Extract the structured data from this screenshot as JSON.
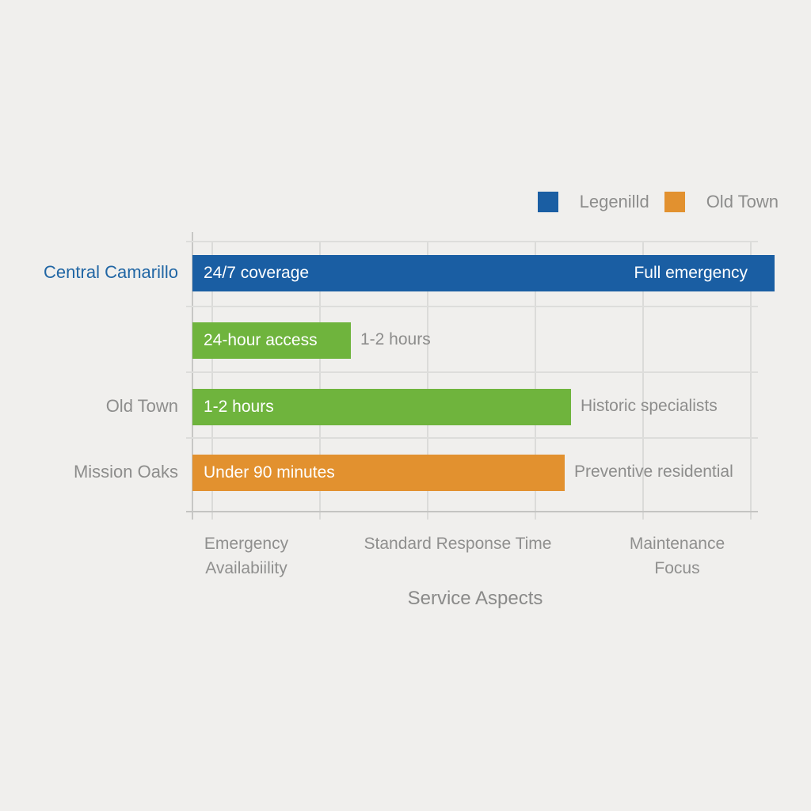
{
  "background_color": "#f0efed",
  "legend": {
    "items": [
      {
        "label": "Legenilld",
        "color": "#1a5ea3"
      },
      {
        "label": "Old Town",
        "color": "#e2912f"
      }
    ]
  },
  "chart_data": {
    "type": "bar",
    "orientation": "horizontal",
    "title": "",
    "xlabel": "Service Aspects",
    "ylabel": "",
    "grid": true,
    "legend_position": "top-right",
    "x_tick_labels": [
      "Emergency\nAvailabiility",
      "Standard Response Time",
      "Maintenance Focus"
    ],
    "colors": {
      "blue": "#1a5ea3",
      "green": "#6fb43d",
      "orange": "#e2912f",
      "category_highlight": "#2166a4",
      "text_gray": "#8d8d8c"
    },
    "rows": [
      {
        "category": "Central Camarillo",
        "category_highlighted": true,
        "bar_label": "24/7 coverage",
        "bar_end_label": "Full emergency",
        "outside_label": "",
        "color": "#1a5ea3",
        "length_frac": 1.029
      },
      {
        "category": "",
        "category_highlighted": false,
        "bar_label": "24-hour access",
        "bar_end_label": "",
        "outside_label": "1-2 hours",
        "color": "#6fb43d",
        "length_frac": 0.28
      },
      {
        "category": "Old Town",
        "category_highlighted": false,
        "bar_label": "1-2 hours",
        "bar_end_label": "",
        "outside_label": "Historic specialists",
        "color": "#6fb43d",
        "length_frac": 0.669
      },
      {
        "category": "Mission Oaks",
        "category_highlighted": false,
        "bar_label": "Under 90 minutes",
        "bar_end_label": "",
        "outside_label": "Preventive residential",
        "color": "#e2912f",
        "length_frac": 0.658
      }
    ]
  }
}
